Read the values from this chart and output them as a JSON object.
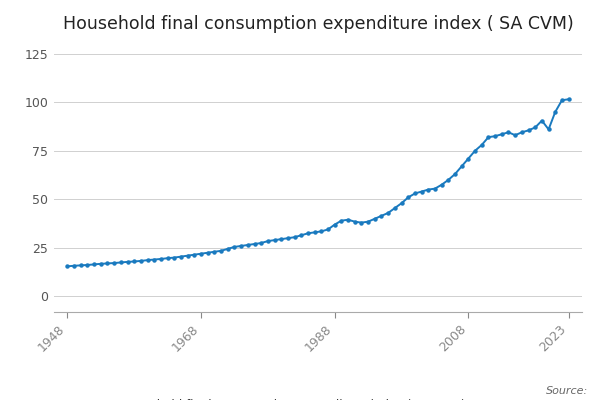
{
  "title": "Household final consumption expenditure index ( SA CVM)",
  "line_color": "#1a7abf",
  "background_color": "#ffffff",
  "grid_color": "#d0d0d0",
  "yticks": [
    0,
    25,
    50,
    75,
    100,
    125
  ],
  "ylim": [
    -8,
    132
  ],
  "xlim": [
    1946,
    2025
  ],
  "xtick_labels": [
    "1948",
    "1968",
    "1988",
    "2008",
    "2023"
  ],
  "xtick_positions": [
    1948,
    1968,
    1988,
    2008,
    2023
  ],
  "legend_label": "Household final consumption expenditure index ( SA CVM)",
  "source_text": "Source:",
  "x": [
    1948,
    1949,
    1950,
    1951,
    1952,
    1953,
    1954,
    1955,
    1956,
    1957,
    1958,
    1959,
    1960,
    1961,
    1962,
    1963,
    1964,
    1965,
    1966,
    1967,
    1968,
    1969,
    1970,
    1971,
    1972,
    1973,
    1974,
    1975,
    1976,
    1977,
    1978,
    1979,
    1980,
    1981,
    1982,
    1983,
    1984,
    1985,
    1986,
    1987,
    1988,
    1989,
    1990,
    1991,
    1992,
    1993,
    1994,
    1995,
    1996,
    1997,
    1998,
    1999,
    2000,
    2001,
    2002,
    2003,
    2004,
    2005,
    2006,
    2007,
    2008,
    2009,
    2010,
    2011,
    2012,
    2013,
    2014,
    2015,
    2016,
    2017,
    2018,
    2019,
    2020,
    2021,
    2022,
    2023
  ],
  "y": [
    15.5,
    15.8,
    16.0,
    16.2,
    16.5,
    16.8,
    17.0,
    17.2,
    17.5,
    17.8,
    18.0,
    18.3,
    18.7,
    19.0,
    19.3,
    19.7,
    20.0,
    20.5,
    21.0,
    21.5,
    22.0,
    22.5,
    23.0,
    23.5,
    24.5,
    25.5,
    26.0,
    26.5,
    27.0,
    27.5,
    28.5,
    29.0,
    29.5,
    30.0,
    30.5,
    31.5,
    32.5,
    33.0,
    33.5,
    34.5,
    37.0,
    39.0,
    39.5,
    38.5,
    38.0,
    38.5,
    40.0,
    41.5,
    43.0,
    45.5,
    48.0,
    51.0,
    53.0,
    54.0,
    55.0,
    55.5,
    57.5,
    60.0,
    63.0,
    67.0,
    71.0,
    75.0,
    78.0,
    82.0,
    82.5,
    83.5,
    84.5,
    83.0,
    84.5,
    85.5,
    87.0,
    90.5,
    86.0,
    95.0,
    101.0,
    101.5
  ]
}
